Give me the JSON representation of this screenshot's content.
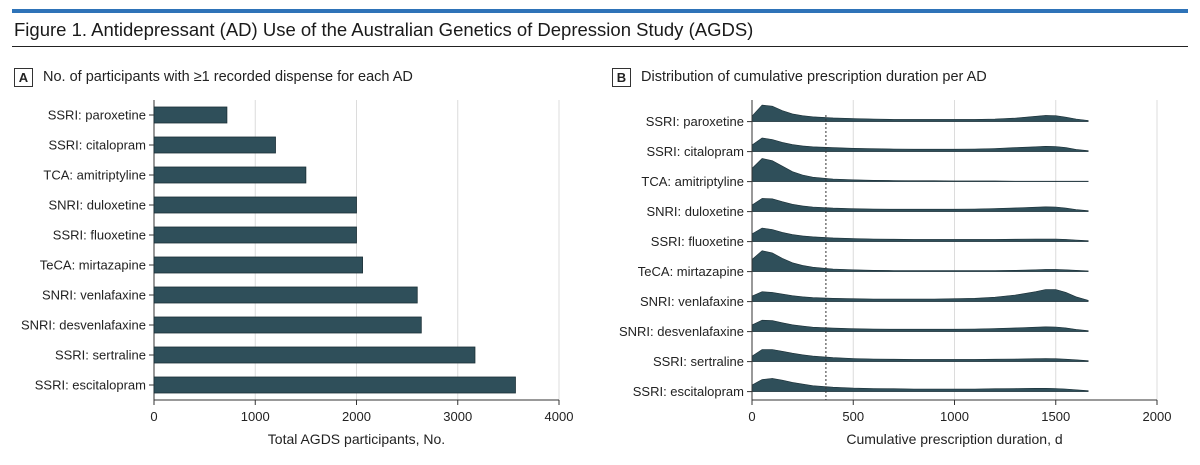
{
  "colors": {
    "accent": "#2E73B8",
    "bar": "#2F4F5A",
    "grid": "#dcdcdc"
  },
  "figure": {
    "title": "Figure 1. Antidepressant (AD) Use of the Australian Genetics of Depression Study (AGDS)"
  },
  "panel_a": {
    "letter": "A",
    "title": "No. of participants with ≥1 recorded dispense for each AD"
  },
  "panel_b": {
    "letter": "B",
    "title": "Distribution of cumulative prescription duration per AD"
  },
  "chart_data": [
    {
      "type": "bar",
      "orientation": "horizontal",
      "categories": [
        "SSRI: paroxetine",
        "SSRI: citalopram",
        "TCA: amitriptyline",
        "SNRI: duloxetine",
        "SSRI: fluoxetine",
        "TeCA: mirtazapine",
        "SNRI: venlafaxine",
        "SNRI: desvenlafaxine",
        "SSRI: sertraline",
        "SSRI: escitalopram"
      ],
      "values": [
        720,
        1200,
        1500,
        2000,
        2000,
        2060,
        2600,
        2640,
        3170,
        3570
      ],
      "xlabel": "Total AGDS participants, No.",
      "xlim": [
        0,
        4000
      ],
      "xticks": [
        0,
        1000,
        2000,
        3000,
        4000
      ],
      "grid": "vertical"
    },
    {
      "type": "area",
      "subtype": "ridgeline",
      "categories": [
        "SSRI: paroxetine",
        "SSRI: citalopram",
        "TCA: amitriptyline",
        "SNRI: duloxetine",
        "SSRI: fluoxetine",
        "TeCA: mirtazapine",
        "SNRI: venlafaxine",
        "SNRI: desvenlafaxine",
        "SSRI: sertraline",
        "SSRI: escitalopram"
      ],
      "x": [
        0,
        50,
        100,
        150,
        200,
        250,
        300,
        400,
        500,
        600,
        700,
        800,
        900,
        1000,
        1100,
        1200,
        1300,
        1400,
        1450,
        1500,
        1550,
        1600,
        1660
      ],
      "series": [
        {
          "values": [
            0.25,
            0.75,
            0.7,
            0.5,
            0.35,
            0.27,
            0.22,
            0.17,
            0.14,
            0.12,
            0.1,
            0.1,
            0.1,
            0.1,
            0.1,
            0.12,
            0.16,
            0.24,
            0.28,
            0.27,
            0.2,
            0.12,
            0.05
          ]
        },
        {
          "values": [
            0.3,
            0.62,
            0.55,
            0.42,
            0.32,
            0.26,
            0.22,
            0.18,
            0.15,
            0.13,
            0.12,
            0.11,
            0.11,
            0.11,
            0.12,
            0.14,
            0.18,
            0.22,
            0.24,
            0.23,
            0.18,
            0.1,
            0.04
          ]
        },
        {
          "values": [
            0.6,
            1.05,
            0.95,
            0.7,
            0.45,
            0.3,
            0.2,
            0.12,
            0.08,
            0.06,
            0.05,
            0.04,
            0.04,
            0.03,
            0.03,
            0.03,
            0.02,
            0.02,
            0.02,
            0.02,
            0.02,
            0.02,
            0.02
          ]
        },
        {
          "values": [
            0.3,
            0.6,
            0.58,
            0.45,
            0.33,
            0.26,
            0.21,
            0.16,
            0.13,
            0.12,
            0.11,
            0.11,
            0.11,
            0.11,
            0.12,
            0.14,
            0.17,
            0.2,
            0.22,
            0.21,
            0.16,
            0.09,
            0.04
          ]
        },
        {
          "values": [
            0.35,
            0.62,
            0.55,
            0.42,
            0.32,
            0.26,
            0.22,
            0.17,
            0.14,
            0.12,
            0.11,
            0.1,
            0.1,
            0.1,
            0.1,
            0.1,
            0.11,
            0.12,
            0.12,
            0.12,
            0.1,
            0.07,
            0.04
          ]
        },
        {
          "values": [
            0.55,
            0.95,
            0.85,
            0.6,
            0.4,
            0.28,
            0.2,
            0.12,
            0.08,
            0.06,
            0.05,
            0.05,
            0.05,
            0.05,
            0.05,
            0.05,
            0.06,
            0.08,
            0.1,
            0.1,
            0.08,
            0.06,
            0.03
          ]
        },
        {
          "values": [
            0.25,
            0.45,
            0.42,
            0.34,
            0.27,
            0.22,
            0.18,
            0.15,
            0.13,
            0.12,
            0.12,
            0.12,
            0.12,
            0.13,
            0.15,
            0.2,
            0.3,
            0.45,
            0.55,
            0.55,
            0.42,
            0.22,
            0.06
          ]
        },
        {
          "values": [
            0.3,
            0.52,
            0.5,
            0.4,
            0.31,
            0.25,
            0.2,
            0.16,
            0.13,
            0.12,
            0.11,
            0.11,
            0.11,
            0.11,
            0.12,
            0.14,
            0.17,
            0.2,
            0.22,
            0.21,
            0.17,
            0.1,
            0.04
          ]
        },
        {
          "values": [
            0.25,
            0.55,
            0.55,
            0.47,
            0.38,
            0.31,
            0.25,
            0.18,
            0.14,
            0.12,
            0.11,
            0.1,
            0.1,
            0.1,
            0.1,
            0.11,
            0.12,
            0.13,
            0.14,
            0.13,
            0.11,
            0.08,
            0.04
          ]
        },
        {
          "values": [
            0.3,
            0.55,
            0.6,
            0.52,
            0.42,
            0.34,
            0.27,
            0.2,
            0.16,
            0.14,
            0.13,
            0.12,
            0.12,
            0.12,
            0.12,
            0.13,
            0.14,
            0.15,
            0.15,
            0.14,
            0.12,
            0.08,
            0.04
          ]
        }
      ],
      "reference_line": 365,
      "xlabel": "Cumulative prescription duration, d",
      "xlim": [
        0,
        2000
      ],
      "xticks": [
        0,
        500,
        1000,
        1500,
        2000
      ],
      "grid": "vertical"
    }
  ]
}
